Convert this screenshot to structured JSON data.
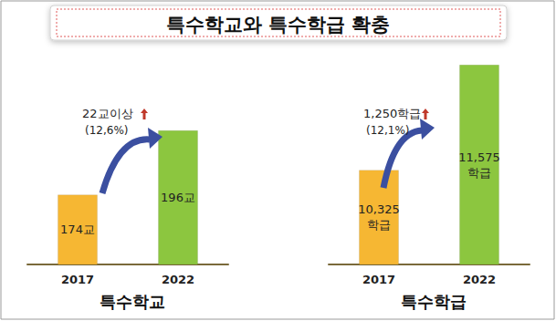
{
  "title": "특수학교와 특수학급 확충",
  "chart_data": [
    {
      "type": "bar",
      "title": "특수학교",
      "categories": [
        "2017",
        "2022"
      ],
      "values": [
        174,
        196
      ],
      "value_labels": [
        "174교",
        "196교"
      ],
      "colors": [
        "#f6b733",
        "#8cc63f"
      ],
      "annotation": "22교이상",
      "annotation_sub": "(12,6%)",
      "ylim": [
        150,
        225
      ],
      "yticks": [
        150,
        225
      ],
      "grid": false,
      "tick_labels": "x",
      "data_labels": true
    },
    {
      "type": "bar",
      "title": "특수학급",
      "categories": [
        "2017",
        "2022"
      ],
      "values": [
        10325,
        11575
      ],
      "value_labels": [
        "10,325\n학급",
        "11,575\n학급"
      ],
      "colors": [
        "#f6b733",
        "#8cc63f"
      ],
      "annotation": "1,250학급",
      "annotation_sub": "(12,1%)",
      "ylim": [
        9200,
        11800
      ],
      "yticks": [
        9200,
        11800
      ],
      "grid": false,
      "tick_labels": "x",
      "data_labels": true
    }
  ]
}
